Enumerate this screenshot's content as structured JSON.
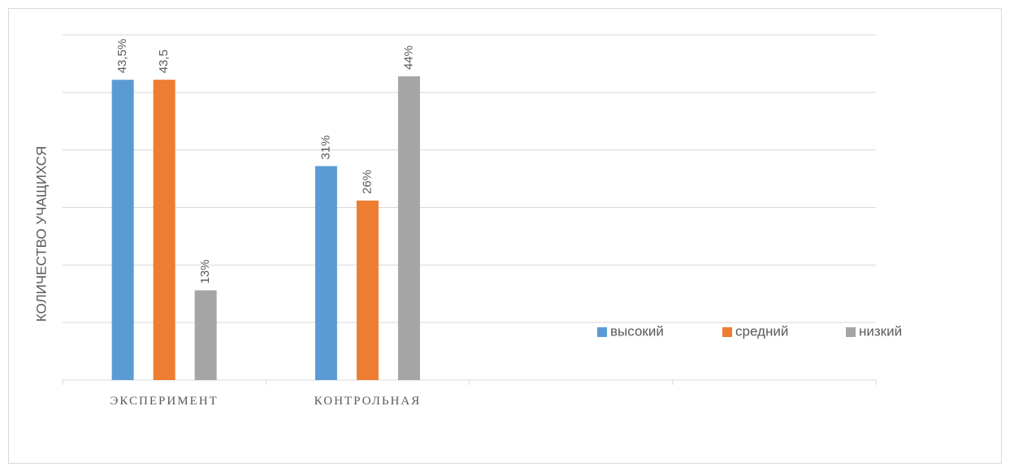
{
  "chart_data": {
    "type": "bar",
    "y_label": "КОЛИЧЕСТВО УЧАЩИХСЯ",
    "categories": [
      "ЭКСПЕРИМЕНТ",
      "КОНТРОЛЬНАЯ",
      null,
      null
    ],
    "series": [
      {
        "name": "высокий",
        "color": "#5b9bd5",
        "values": [
          43.5,
          31,
          null,
          null
        ],
        "value_labels": [
          "43,5%",
          "31%",
          null,
          null
        ]
      },
      {
        "name": "средний",
        "color": "#ed7d31",
        "values": [
          43.5,
          26,
          null,
          null
        ],
        "value_labels": [
          "43,5",
          "26%",
          null,
          null
        ]
      },
      {
        "name": "низкий",
        "color": "#a5a5a5",
        "values": [
          13,
          44,
          null,
          null
        ],
        "value_labels": [
          "13%",
          "44%",
          null,
          null
        ]
      }
    ],
    "ylim": [
      0,
      50
    ],
    "grid": true,
    "legend": "right"
  }
}
